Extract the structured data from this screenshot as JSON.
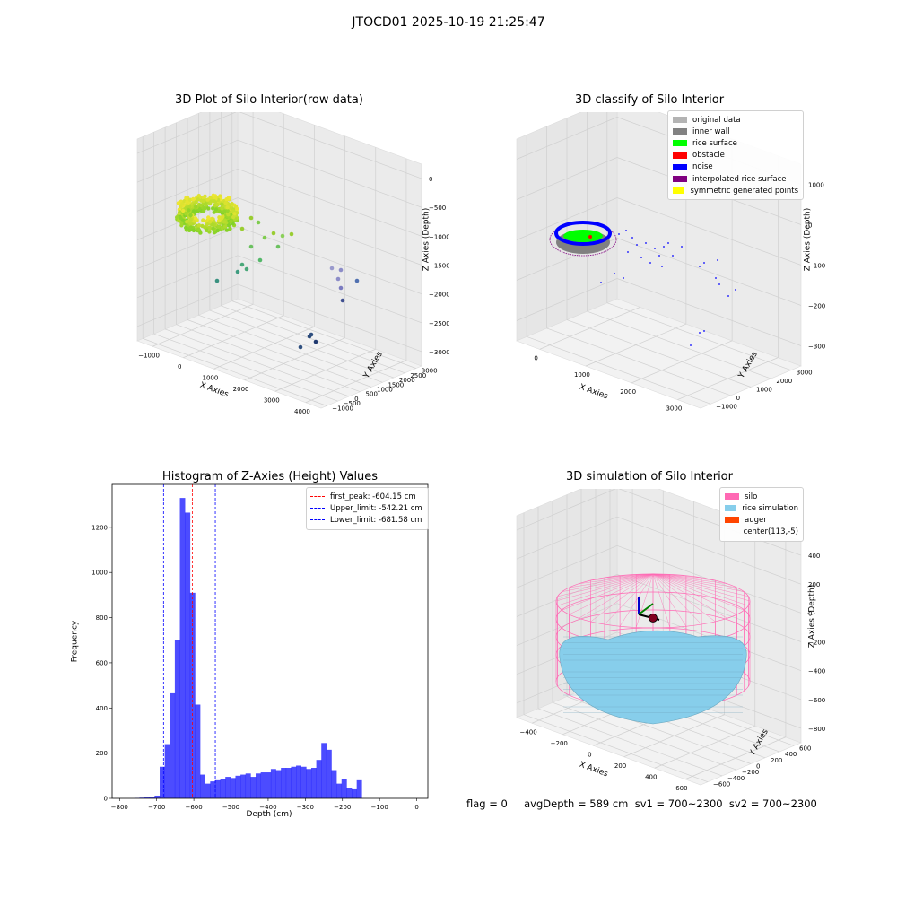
{
  "figure": {
    "suptitle": "JTOCD01 2025-10-19 21:25:47",
    "footer": "flag = 0     avgDepth = 589 cm  sv1 = 700~2300  sv2 = 700~2300"
  },
  "colors": {
    "original": "#b3b3b3",
    "inner_wall": "#808080",
    "rice_surface": "#00ff00",
    "obstacle": "#ff0000",
    "noise": "#0000ff",
    "interpolated": "#800080",
    "symmetric": "#ffff00",
    "silo": "#ff69b4",
    "rice_sim": "#87ceeb",
    "auger": "#ff4500",
    "hist_bar": "#0000ff"
  },
  "panels": {
    "raw": {
      "title": "3D Plot of Silo Interior(row data)",
      "xlabel": "X Axies",
      "ylabel": "Y Axies",
      "zlabel": "Z Axies (Depth)",
      "xticks": [
        "−1000",
        "0",
        "1000",
        "2000",
        "3000",
        "4000"
      ],
      "yticks": [
        "−1000",
        "−500",
        "0",
        "500",
        "1000",
        "1500",
        "2000",
        "2500",
        "3000"
      ],
      "zticks": [
        "0",
        "−500",
        "−1000",
        "−1500",
        "−2000",
        "−2500",
        "−3000"
      ]
    },
    "classify": {
      "title": "3D classify of Silo Interior",
      "xlabel": "X Axies",
      "ylabel": "Y Axies",
      "zlabel": "Z Axies (Depth)",
      "xticks": [
        "0",
        "1000",
        "2000",
        "3000"
      ],
      "yticks": [
        "−1000",
        "0",
        "1000",
        "2000",
        "3000"
      ],
      "zticks": [
        "1000",
        "0",
        "−1000",
        "−2000",
        "−3000"
      ],
      "legend": [
        {
          "label": "original data",
          "color": "#b3b3b3"
        },
        {
          "label": "inner wall",
          "color": "#808080"
        },
        {
          "label": "rice surface",
          "color": "#00ff00"
        },
        {
          "label": "obstacle",
          "color": "#ff0000"
        },
        {
          "label": "noise",
          "color": "#0000ff"
        },
        {
          "label": "interpolated rice surface",
          "color": "#800080"
        },
        {
          "label": "symmetric generated points",
          "color": "#ffff00"
        }
      ]
    },
    "sim": {
      "title": "3D simulation of Silo Interior",
      "xlabel": "X Axies",
      "ylabel": "Y Axies",
      "zlabel": "Z Axies (Depth)",
      "xticks": [
        "−400",
        "−200",
        "0",
        "200",
        "400",
        "600"
      ],
      "yticks": [
        "−600",
        "−400",
        "−200",
        "0",
        "200",
        "400",
        "600"
      ],
      "zticks": [
        "400",
        "200",
        "0",
        "−200",
        "−400",
        "−600",
        "−800"
      ],
      "legend": [
        {
          "label": "silo",
          "color": "#ff69b4"
        },
        {
          "label": "rice simulation",
          "color": "#87ceeb"
        },
        {
          "label": "auger",
          "color": "#ff4500"
        },
        {
          "label": "center(113,-5)",
          "color": ""
        }
      ]
    }
  },
  "chart_data": {
    "type": "bar",
    "title": "Histogram of Z-Axies (Height) Values",
    "xlabel": "Depth (cm)",
    "ylabel": "Frequency",
    "xlim": [
      -820,
      30
    ],
    "ylim": [
      0,
      1390
    ],
    "xticks": [
      -800,
      -700,
      -600,
      -500,
      -400,
      -300,
      -200,
      -100,
      0
    ],
    "yticks": [
      0,
      200,
      400,
      600,
      800,
      1000,
      1200
    ],
    "bin_start": -760,
    "bin_width": 13.6,
    "values": [
      2,
      3,
      4,
      5,
      12,
      140,
      240,
      465,
      700,
      1330,
      1265,
      910,
      415,
      105,
      65,
      75,
      80,
      85,
      95,
      90,
      100,
      105,
      110,
      95,
      110,
      115,
      115,
      130,
      125,
      135,
      135,
      140,
      145,
      140,
      130,
      135,
      170,
      245,
      215,
      125,
      65,
      85,
      45,
      40,
      80
    ],
    "lines": [
      {
        "name": "first_peak: -604.15 cm",
        "x": -604.15,
        "color": "#ff0000"
      },
      {
        "name": "Upper_limit: -542.21 cm",
        "x": -542.21,
        "color": "#0000ff"
      },
      {
        "name": "Lower_limit: -681.58 cm",
        "x": -681.58,
        "color": "#0000ff"
      }
    ],
    "legend_position": "top-right",
    "grid": false
  }
}
